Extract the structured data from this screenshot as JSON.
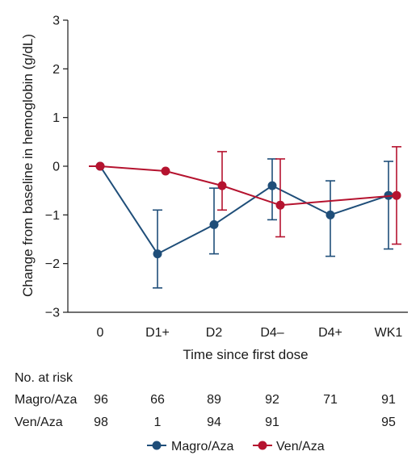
{
  "chart_data": {
    "type": "line",
    "xlabel": "Time since first dose",
    "ylabel": "Change from baseline in hemoglobin (g/dL)",
    "ylim": [
      -3,
      3
    ],
    "yticks": [
      3,
      2,
      1,
      0,
      -1,
      -2,
      -3
    ],
    "categories": [
      "0",
      "D1+",
      "D2",
      "D4–",
      "D4+",
      "WK1"
    ],
    "grid": false,
    "legend_position": "bottom",
    "series": [
      {
        "name": "Magro/Aza",
        "color": "#1f4e79",
        "values": [
          0,
          -1.8,
          -1.2,
          -0.4,
          -1.0,
          -0.6
        ],
        "err_low": [
          null,
          -2.5,
          -1.8,
          -1.1,
          -1.85,
          -1.7
        ],
        "err_high": [
          null,
          -0.9,
          -0.45,
          0.15,
          -0.3,
          0.1
        ]
      },
      {
        "name": "Ven/Aza",
        "color": "#b5132f",
        "values": [
          0,
          -0.1,
          -0.4,
          -0.8,
          null,
          -0.6
        ],
        "err_low": [
          null,
          null,
          -0.9,
          -1.45,
          null,
          -1.6
        ],
        "err_high": [
          null,
          null,
          0.3,
          0.15,
          null,
          0.4
        ]
      }
    ]
  },
  "risk_table": {
    "title": "No. at risk",
    "rows": [
      {
        "label": "Magro/Aza",
        "values": [
          "96",
          "66",
          "89",
          "92",
          "71",
          "91"
        ]
      },
      {
        "label": "Ven/Aza",
        "values": [
          "98",
          "1",
          "94",
          "91",
          "",
          "95"
        ]
      }
    ]
  }
}
